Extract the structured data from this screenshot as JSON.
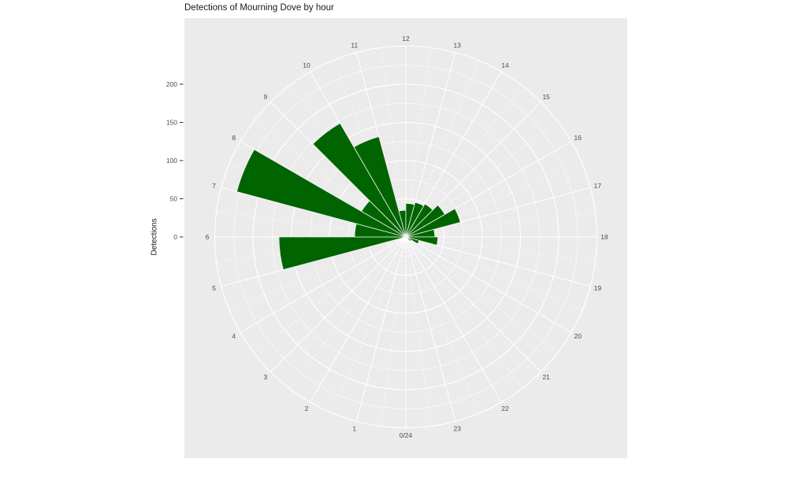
{
  "chart_data": {
    "type": "polar_bar",
    "title": "Detections of Mourning Dove by hour",
    "ylabel": "Detections",
    "units": "hours (0-23) around circle, detections radially",
    "hour_labels": [
      "0/24",
      "1",
      "2",
      "3",
      "4",
      "5",
      "6",
      "7",
      "8",
      "9",
      "10",
      "11",
      "12",
      "13",
      "14",
      "15",
      "16",
      "17",
      "18",
      "19",
      "20",
      "21",
      "22",
      "23"
    ],
    "values": [
      0,
      0,
      0,
      0,
      0,
      166,
      67,
      229,
      67,
      172,
      136,
      35,
      44,
      47,
      50,
      59,
      74,
      38,
      42,
      18,
      8,
      0,
      0,
      0
    ],
    "radial_ticks": [
      0,
      50,
      100,
      150,
      200
    ],
    "radial_minor_circles": [
      25,
      75,
      125,
      175,
      225
    ],
    "radial_major_circles": [
      50,
      100,
      150,
      200,
      250
    ],
    "radial_max": 250,
    "grid": "on, white on gray panel; solid spokes each hour, dashed spokes each half hour",
    "legend": "none",
    "colors": {
      "bar": "#006400",
      "bar_seam": "#f2f2f2",
      "panel": "#ebebeb",
      "grid": "#ffffff",
      "axis_text": "#4d4d4d",
      "title_text": "#1a1a1a",
      "tick_mark": "#333333"
    }
  }
}
